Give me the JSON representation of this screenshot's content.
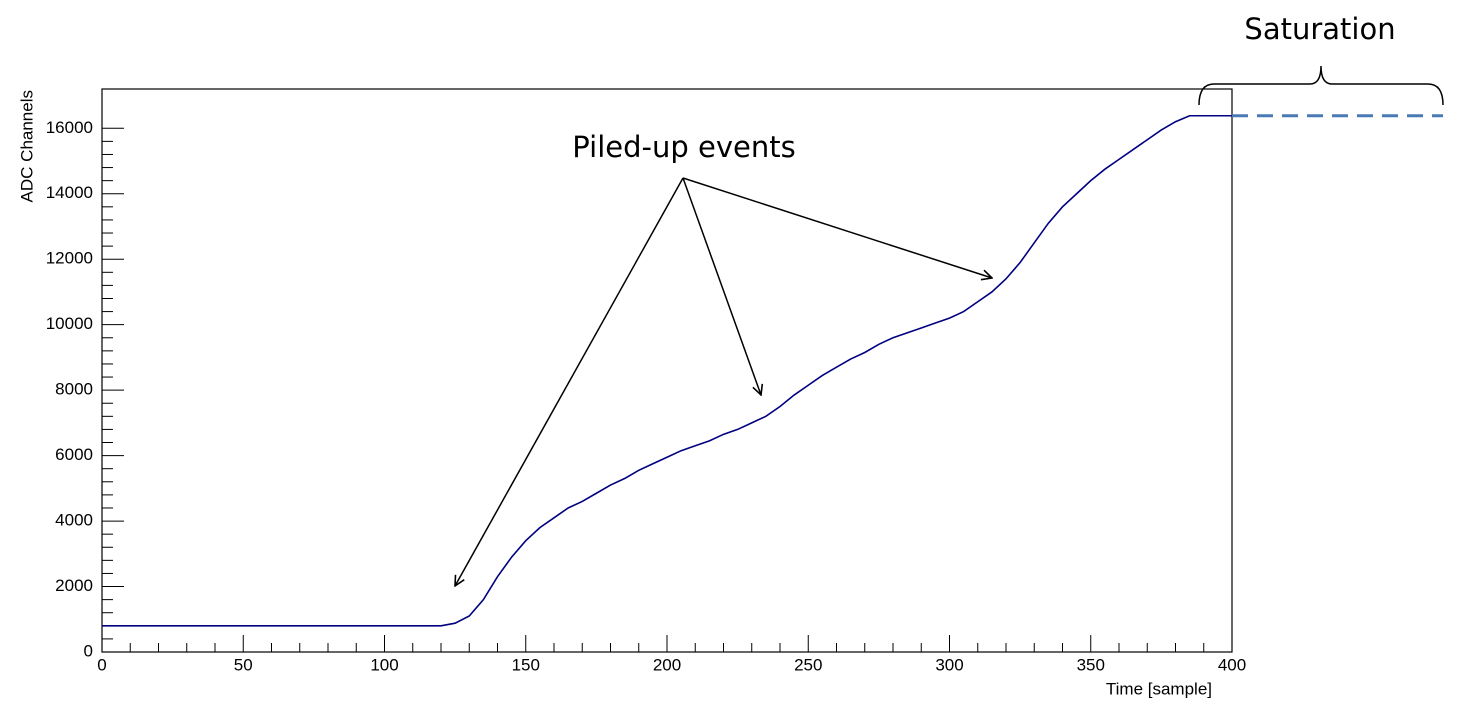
{
  "chart_data": {
    "type": "line",
    "x_label": "Time [sample]",
    "y_label": "ADC Channels",
    "annotations": [
      "Piled-up events",
      "Saturation"
    ],
    "x": [
      0,
      50,
      100,
      120,
      125,
      130,
      135,
      140,
      145,
      150,
      155,
      160,
      165,
      170,
      175,
      180,
      185,
      190,
      195,
      200,
      205,
      210,
      215,
      220,
      225,
      230,
      235,
      240,
      245,
      250,
      255,
      260,
      265,
      270,
      275,
      280,
      285,
      290,
      295,
      300,
      305,
      310,
      315,
      320,
      325,
      330,
      335,
      340,
      345,
      350,
      355,
      360,
      365,
      370,
      375,
      380,
      385,
      388,
      400
    ],
    "series": [
      {
        "color": "#000080",
        "values": [
          800,
          800,
          800,
          800,
          880,
          1100,
          1600,
          2300,
          2900,
          3400,
          3800,
          4100,
          4400,
          4600,
          4850,
          5100,
          5300,
          5550,
          5750,
          5950,
          6150,
          6300,
          6450,
          6650,
          6800,
          7000,
          7200,
          7500,
          7850,
          8150,
          8450,
          8700,
          8950,
          9150,
          9400,
          9600,
          9750,
          9900,
          10050,
          10200,
          10400,
          10700,
          11000,
          11400,
          11900,
          12500,
          13100,
          13600,
          14000,
          14400,
          14750,
          15050,
          15350,
          15650,
          15950,
          16200,
          16383,
          16383,
          16383
        ]
      }
    ],
    "xlim": [
      0,
      400
    ],
    "ylim": [
      0,
      17200
    ],
    "xticks": [
      0,
      50,
      100,
      150,
      200,
      250,
      300,
      350,
      400
    ],
    "yticks": [
      0,
      2000,
      4000,
      6000,
      8000,
      10000,
      12000,
      14000,
      16000
    ],
    "saturation_color": "#4a7ab5"
  }
}
